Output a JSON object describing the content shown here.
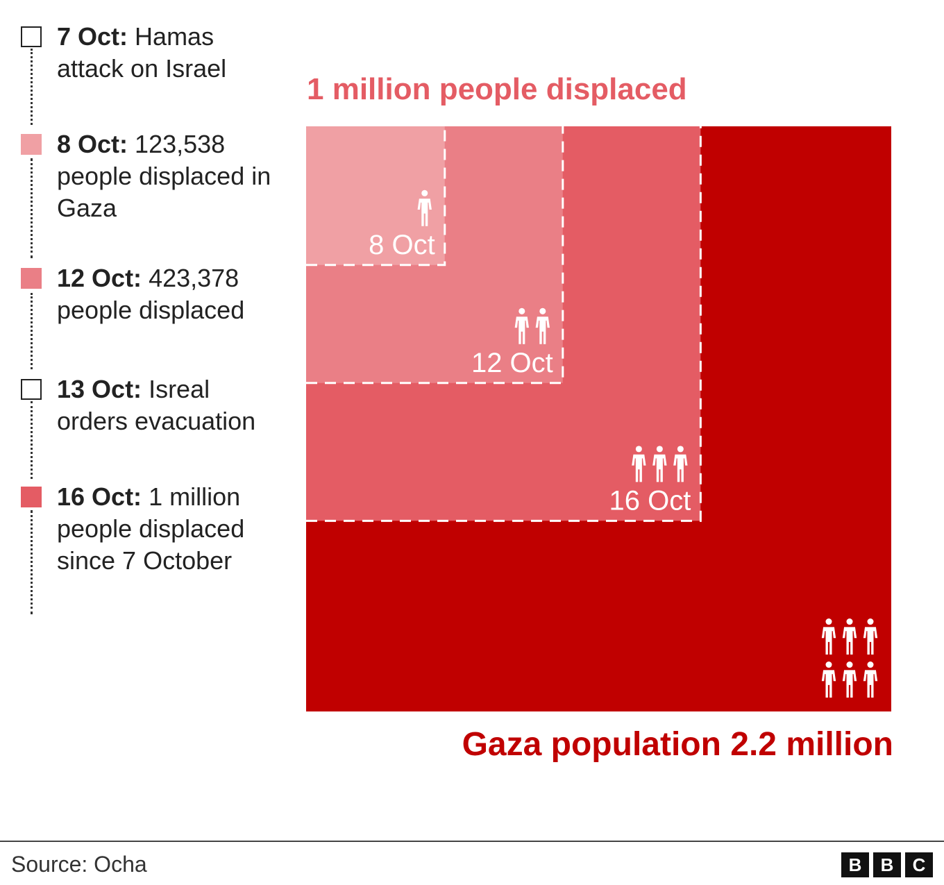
{
  "legend": {
    "items": [
      {
        "date": "7 Oct:",
        "text": "Hamas attack on Israel",
        "style": "hollow",
        "color": "#ffffff"
      },
      {
        "date": "8 Oct:",
        "text": "123,538 people displaced in Gaza",
        "style": "filled",
        "color": "#f0a0a4"
      },
      {
        "date": "12 Oct:",
        "text": "423,378 people displaced",
        "style": "filled",
        "color": "#ea7f86"
      },
      {
        "date": "13 Oct:",
        "text": "Isreal orders evacuation",
        "style": "hollow",
        "color": "#ffffff"
      },
      {
        "date": "16 Oct:",
        "text": "1 million people displaced since 7 October",
        "style": "filled",
        "color": "#e45c64"
      }
    ]
  },
  "chart_data": {
    "type": "area",
    "subtype": "nested-squares",
    "title": "",
    "total_label": "Gaza population 2.2 million",
    "top_label": "1 million people displaced",
    "total": 2200000,
    "series": [
      {
        "name": "8 Oct",
        "value": 123538,
        "color": "#f0a0a4",
        "icon_count": 1
      },
      {
        "name": "12 Oct",
        "value": 423378,
        "color": "#ea7f86",
        "icon_count": 2
      },
      {
        "name": "16 Oct",
        "value": 1000000,
        "color": "#e45c64",
        "icon_count": 3
      }
    ],
    "total_color": "#c00000",
    "total_icon_count": 6
  },
  "footer": {
    "source": "Source: Ocha",
    "logo": [
      "B",
      "B",
      "C"
    ]
  }
}
